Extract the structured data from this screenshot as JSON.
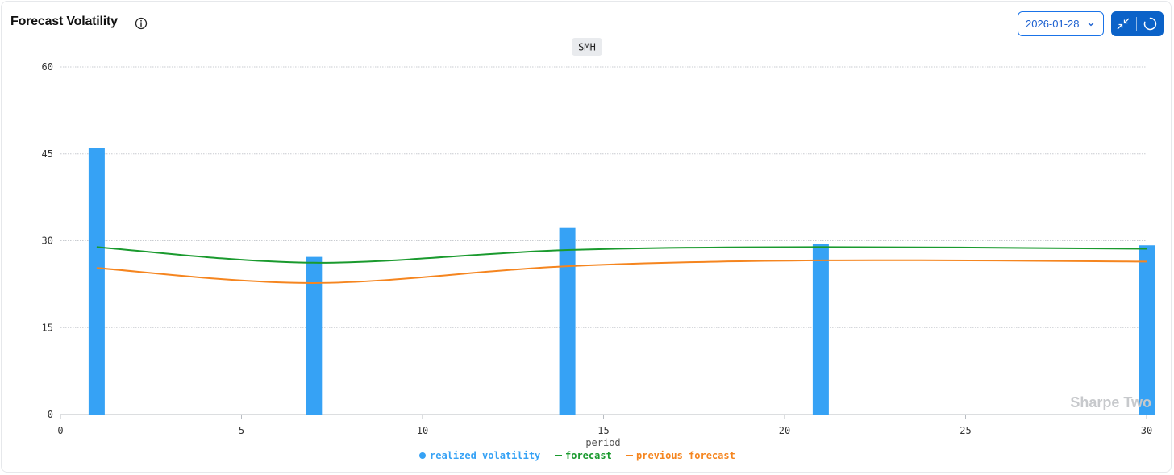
{
  "header": {
    "title": "Forecast Volatility",
    "info_icon": "info-circle-icon",
    "date_value": "2026-01-28",
    "collapse_icon": "collapse-arrows-icon",
    "refresh_icon": "refresh-spinner-icon"
  },
  "colors": {
    "realized": "#36a2f5",
    "forecast": "#1a9a2e",
    "previous_forecast": "#f5851f",
    "accent": "#0b62c8"
  },
  "watermark": "Sharpe Two",
  "chart_data": {
    "type": "bar",
    "title": "SMH",
    "xlabel": "period",
    "ylabel": "",
    "xlim": [
      0,
      30
    ],
    "ylim": [
      0,
      60
    ],
    "x_ticks": [
      0,
      5,
      10,
      15,
      20,
      25,
      30
    ],
    "y_ticks": [
      0,
      15,
      30,
      45,
      60
    ],
    "grid": true,
    "legend_position": "bottom",
    "series": [
      {
        "name": "realized volatility",
        "type": "bar",
        "x": [
          1,
          7,
          14,
          21,
          30
        ],
        "values": [
          46,
          27.2,
          32.2,
          29.5,
          29.2
        ]
      },
      {
        "name": "forecast",
        "type": "line",
        "x": [
          1,
          7,
          14,
          21,
          30
        ],
        "values": [
          28.9,
          26.2,
          28.4,
          28.9,
          28.6
        ]
      },
      {
        "name": "previous forecast",
        "type": "line",
        "x": [
          1,
          7,
          14,
          21,
          30
        ],
        "values": [
          25.3,
          22.7,
          25.6,
          26.6,
          26.4
        ]
      }
    ]
  }
}
